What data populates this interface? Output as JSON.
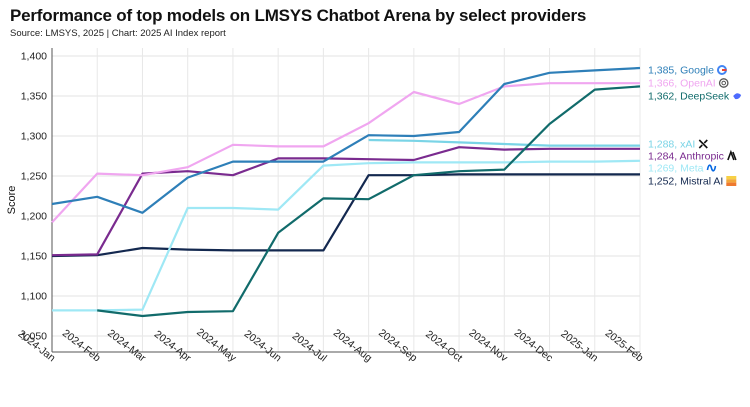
{
  "chart_data": {
    "type": "line",
    "title": "Performance of top models on LMSYS Chatbot Arena by select providers",
    "source": "Source: LMSYS, 2025 | Chart: 2025 AI Index report",
    "ylabel": "Score",
    "xlabel": "",
    "categories": [
      "2024-Jan",
      "2024-Feb",
      "2024-Mar",
      "2024-Apr",
      "2024-May",
      "2024-Jun",
      "2024-Jul",
      "2024-Aug",
      "2024-Sep",
      "2024-Oct",
      "2024-Nov",
      "2024-Dec",
      "2025-Jan",
      "2025-Feb"
    ],
    "ylim": [
      1030,
      1410
    ],
    "yticks": [
      1050,
      1100,
      1150,
      1200,
      1250,
      1300,
      1350,
      1400
    ],
    "ytick_labels": [
      "1,050",
      "1,100",
      "1,150",
      "1,200",
      "1,250",
      "1,300",
      "1,350",
      "1,400"
    ],
    "grid": true,
    "series": [
      {
        "name": "Google",
        "end_label": "1,385, Google",
        "icon": "google-icon",
        "color": "#2e7fb8",
        "values": [
          1215,
          1224,
          1204,
          1248,
          1268,
          1268,
          1268,
          1301,
          1300,
          1305,
          1365,
          1379,
          1382,
          1385
        ]
      },
      {
        "name": "OpenAI",
        "end_label": "1,366, OpenAI",
        "icon": "openai-icon",
        "color": "#f0a6f0",
        "values": [
          1192,
          1253,
          1251,
          1261,
          1289,
          1287,
          1287,
          1316,
          1355,
          1340,
          1362,
          1366,
          1366,
          1366
        ]
      },
      {
        "name": "DeepSeek",
        "end_label": "1,362, DeepSeek",
        "icon": "deepseek-icon",
        "color": "#116b6b",
        "values": [
          null,
          1082,
          1075,
          1080,
          1081,
          1179,
          1222,
          1221,
          1251,
          1256,
          1258,
          1315,
          1358,
          1362
        ]
      },
      {
        "name": "xAI",
        "end_label": "1,288, xAI",
        "icon": "xai-icon",
        "color": "#7ad4e6",
        "values": [
          null,
          null,
          null,
          null,
          null,
          null,
          null,
          1295,
          1294,
          1292,
          1290,
          1288,
          1288,
          1288
        ]
      },
      {
        "name": "Anthropic",
        "end_label": "1,284, Anthropic",
        "icon": "anthropic-icon",
        "color": "#7a2b8f",
        "values": [
          1151,
          1152,
          1253,
          1256,
          1251,
          1272,
          1272,
          1271,
          1270,
          1286,
          1283,
          1284,
          1284,
          1284
        ]
      },
      {
        "name": "Meta",
        "end_label": "1,269, Meta",
        "icon": "meta-icon",
        "color": "#9fe8f5",
        "values": [
          1082,
          1082,
          1083,
          1210,
          1210,
          1208,
          1263,
          1266,
          1267,
          1267,
          1267,
          1268,
          1268,
          1269
        ]
      },
      {
        "name": "Mistral AI",
        "end_label": "1,252, Mistral AI",
        "icon": "mistral-icon",
        "color": "#13284f",
        "values": [
          1150,
          1151,
          1160,
          1158,
          1157,
          1157,
          1157,
          1251,
          1251,
          1252,
          1252,
          1252,
          1252,
          1252
        ]
      }
    ]
  }
}
